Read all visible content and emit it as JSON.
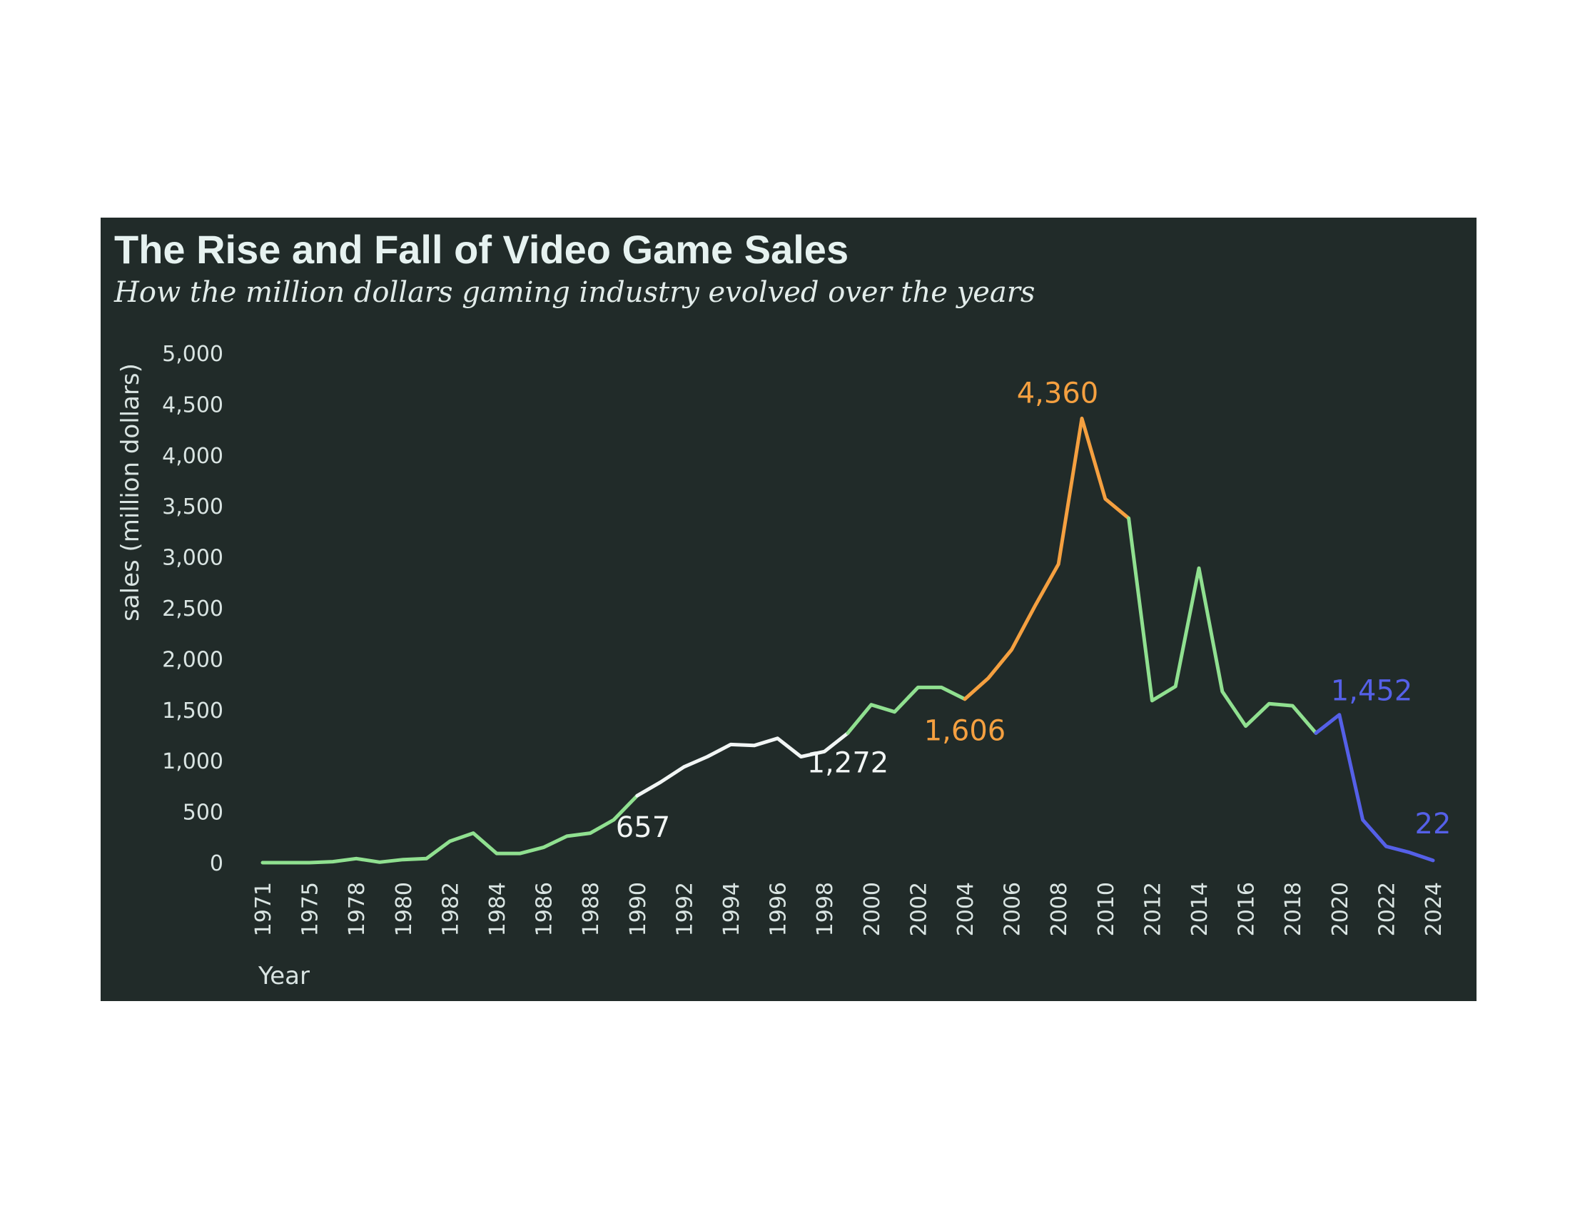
{
  "chart_data": {
    "type": "line",
    "title": "The Rise and Fall of Video Game Sales",
    "subtitle": "How the million dollars gaming industry evolved over the years",
    "xlabel": "Year",
    "ylabel": "sales (million dollars)",
    "ylim": [
      0,
      5000
    ],
    "yticks": [
      0,
      500,
      1000,
      1500,
      2000,
      2500,
      3000,
      3500,
      4000,
      4500,
      5000
    ],
    "ytick_labels": [
      "0",
      "500",
      "1,000",
      "1,500",
      "2,000",
      "2,500",
      "3,000",
      "3,500",
      "4,000",
      "4,500",
      "5,000"
    ],
    "xtick_labels": [
      "1971",
      "1975",
      "1978",
      "1980",
      "1982",
      "1984",
      "1986",
      "1988",
      "1990",
      "1992",
      "1994",
      "1996",
      "1998",
      "2000",
      "2002",
      "2004",
      "2006",
      "2008",
      "2010",
      "2012",
      "2014",
      "2016",
      "2018",
      "2020",
      "2022",
      "2024"
    ],
    "grid": false,
    "legend": "none",
    "background": "#212b29",
    "colors": {
      "green": "#90e090",
      "white": "#f2f6f5",
      "orange": "#f5a040",
      "blue": "#5560e8"
    },
    "x": [
      "1971",
      "1972",
      "1975",
      "1976",
      "1978",
      "1979",
      "1980",
      "1981",
      "1982",
      "1983",
      "1984",
      "1985",
      "1986",
      "1987",
      "1988",
      "1989",
      "1990",
      "1991",
      "1992",
      "1993",
      "1994",
      "1995",
      "1996",
      "1997",
      "1998",
      "1999",
      "2000",
      "2001",
      "2002",
      "2003",
      "2004",
      "2005",
      "2006",
      "2007",
      "2008",
      "2009",
      "2010",
      "2011",
      "2012",
      "2013",
      "2014",
      "2015",
      "2016",
      "2017",
      "2018",
      "2019",
      "2020",
      "2021",
      "2022",
      "2023",
      "2024"
    ],
    "values": [
      0,
      0,
      0,
      10,
      40,
      5,
      30,
      40,
      210,
      290,
      90,
      90,
      150,
      260,
      290,
      420,
      657,
      790,
      940,
      1040,
      1160,
      1150,
      1220,
      1040,
      1090,
      1272,
      1550,
      1480,
      1720,
      1720,
      1606,
      1810,
      2090,
      2520,
      2930,
      4360,
      3570,
      3380,
      1590,
      1730,
      2890,
      1680,
      1340,
      1560,
      1540,
      1272,
      1452,
      420,
      160,
      100,
      22
    ],
    "segments": [
      {
        "color": "green",
        "from": 0,
        "to": 16
      },
      {
        "color": "white",
        "from": 16,
        "to": 25
      },
      {
        "color": "green",
        "from": 25,
        "to": 30
      },
      {
        "color": "orange",
        "from": 30,
        "to": 37
      },
      {
        "color": "green",
        "from": 37,
        "to": 45
      },
      {
        "color": "blue",
        "from": 45,
        "to": 50
      }
    ],
    "annotations": [
      {
        "text": "657",
        "color": "white",
        "index": 16
      },
      {
        "text": "1,272",
        "color": "white",
        "index": 25
      },
      {
        "text": "1,606",
        "color": "orange",
        "index": 30
      },
      {
        "text": "4,360",
        "color": "orange",
        "index": 35
      },
      {
        "text": "1,452",
        "color": "blue",
        "index": 46
      },
      {
        "text": "22",
        "color": "blue",
        "index": 50
      }
    ]
  }
}
